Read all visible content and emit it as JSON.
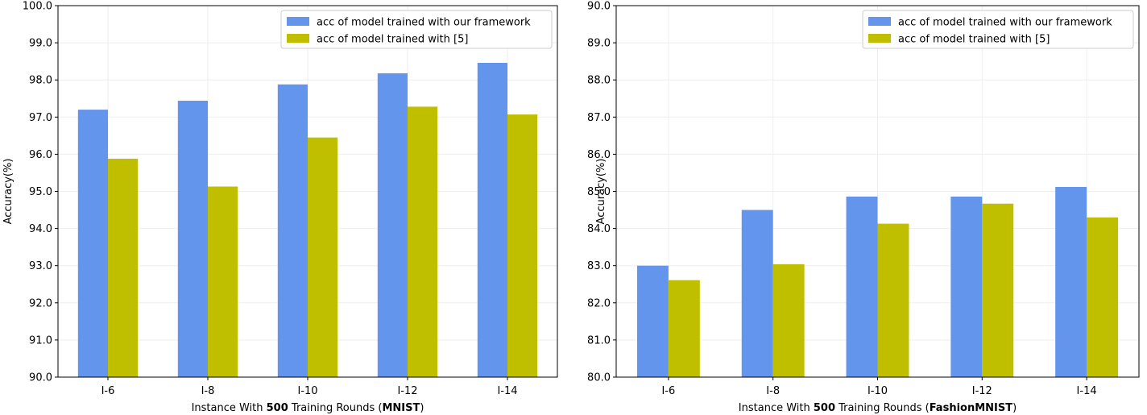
{
  "chart_data": [
    {
      "type": "bar",
      "categories": [
        "I-6",
        "I-8",
        "I-10",
        "I-12",
        "I-14"
      ],
      "series": [
        {
          "name": "acc of model trained with our framework",
          "color": "#6495ED",
          "values": [
            97.2,
            97.44,
            97.88,
            98.18,
            98.46
          ]
        },
        {
          "name": "acc of model trained with [5]",
          "color": "#BFBF00",
          "values": [
            95.88,
            95.13,
            96.45,
            97.28,
            97.07
          ]
        }
      ],
      "xlabel_prefix": "Instance With ",
      "xlabel_bold1": "500",
      "xlabel_mid": " Training Rounds (",
      "xlabel_bold2": "MNIST",
      "xlabel_suffix": ")",
      "ylabel": "Accuracy(%)",
      "ylim": [
        90,
        100
      ],
      "yticks": [
        "90.0",
        "91.0",
        "92.0",
        "93.0",
        "94.0",
        "95.0",
        "96.0",
        "97.0",
        "98.0",
        "99.0",
        "100.0"
      ],
      "grid": true,
      "legend": "top-right"
    },
    {
      "type": "bar",
      "categories": [
        "I-6",
        "I-8",
        "I-10",
        "I-12",
        "I-14"
      ],
      "series": [
        {
          "name": "acc of model trained with our framework",
          "color": "#6495ED",
          "values": [
            83.0,
            84.5,
            84.86,
            84.86,
            85.12
          ]
        },
        {
          "name": "acc of model trained with [5]",
          "color": "#BFBF00",
          "values": [
            82.61,
            83.04,
            84.13,
            84.67,
            84.3
          ]
        }
      ],
      "xlabel_prefix": "Instance With ",
      "xlabel_bold1": "500",
      "xlabel_mid": " Training Rounds (",
      "xlabel_bold2": "FashionMNIST",
      "xlabel_suffix": ")",
      "ylabel": "Accuracy(%)",
      "ylim": [
        80,
        90
      ],
      "yticks": [
        "80.0",
        "81.0",
        "82.0",
        "83.0",
        "84.0",
        "85.0",
        "86.0",
        "87.0",
        "88.0",
        "89.0",
        "90.0"
      ],
      "grid": true,
      "legend": "top-right"
    }
  ]
}
